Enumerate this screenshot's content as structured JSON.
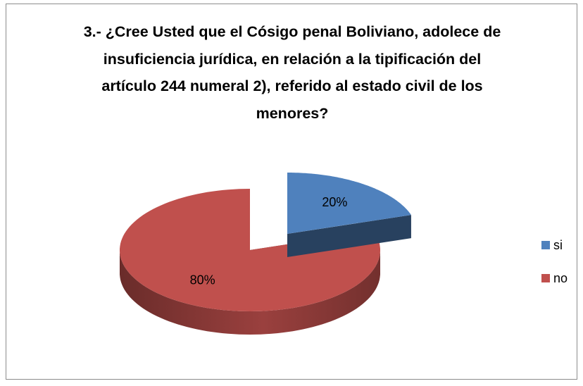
{
  "chart_data": {
    "type": "pie3d",
    "title": "3.- ¿Cree Usted que el Cósigo penal Boliviano, adolece de insuficiencia jurídica, en relación a la tipificación  del artículo 244 numeral 2), referido al estado civil de los menores?",
    "categories": [
      "si",
      "no"
    ],
    "values": [
      20,
      80
    ],
    "value_labels": [
      "20%",
      "80%"
    ],
    "colors": [
      "#4f81bd",
      "#c0504d"
    ],
    "exploded": [
      true,
      false
    ],
    "legend": "right"
  }
}
